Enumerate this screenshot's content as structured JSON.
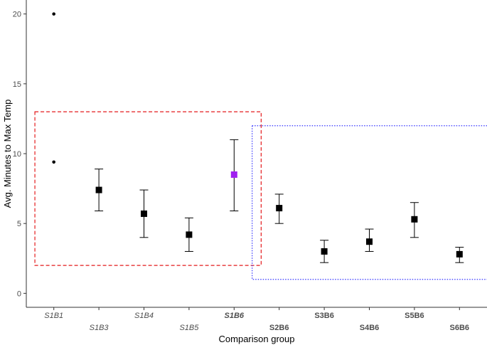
{
  "chart_data": {
    "type": "scatter",
    "xlabel": "Comparison group",
    "ylabel": "Avg. Minutes to Max Temp",
    "ylim": [
      -1,
      21
    ],
    "yticks": [
      0,
      5,
      10,
      15,
      20
    ],
    "grid": false,
    "categories": [
      {
        "label": "S1B1",
        "style": "italic",
        "row": 0
      },
      {
        "label": "S1B3",
        "style": "italic",
        "row": 1
      },
      {
        "label": "S1B4",
        "style": "italic",
        "row": 0
      },
      {
        "label": "S1B5",
        "style": "italic",
        "row": 1
      },
      {
        "label": "S1B6",
        "style": "bold-italic",
        "row": 0
      },
      {
        "label": "S2B6",
        "style": "bold",
        "row": 1
      },
      {
        "label": "S3B6",
        "style": "bold",
        "row": 0
      },
      {
        "label": "S4B6",
        "style": "bold",
        "row": 1
      },
      {
        "label": "S5B6",
        "style": "bold",
        "row": 0
      },
      {
        "label": "S6B6",
        "style": "bold",
        "row": 1
      }
    ],
    "points": [
      {
        "category": "S1B1",
        "values": [
          20.0,
          9.4
        ],
        "marker": "dot"
      },
      {
        "category": "S1B3",
        "mean": 7.4,
        "low": 5.9,
        "high": 8.9,
        "marker": "square",
        "color": "#000000"
      },
      {
        "category": "S1B4",
        "mean": 5.7,
        "low": 4.0,
        "high": 7.4,
        "marker": "square",
        "color": "#000000"
      },
      {
        "category": "S1B5",
        "mean": 4.2,
        "low": 3.0,
        "high": 5.4,
        "marker": "square",
        "color": "#000000"
      },
      {
        "category": "S1B6",
        "mean": 8.5,
        "low": 5.9,
        "high": 11.0,
        "marker": "square",
        "color": "#a020f0"
      },
      {
        "category": "S2B6",
        "mean": 6.1,
        "low": 5.0,
        "high": 7.1,
        "marker": "square",
        "color": "#000000"
      },
      {
        "category": "S3B6",
        "mean": 3.0,
        "low": 2.2,
        "high": 3.8,
        "marker": "square",
        "color": "#000000"
      },
      {
        "category": "S4B6",
        "mean": 3.7,
        "low": 3.0,
        "high": 4.6,
        "marker": "square",
        "color": "#000000"
      },
      {
        "category": "S5B6",
        "mean": 5.3,
        "low": 4.0,
        "high": 6.5,
        "marker": "square",
        "color": "#000000"
      },
      {
        "category": "S6B6",
        "mean": 2.8,
        "low": 2.2,
        "high": 3.3,
        "marker": "square",
        "color": "#000000"
      }
    ],
    "boxes": [
      {
        "name": "red-dashed-box",
        "color": "#e41a1c",
        "style": "dashed",
        "x_from": 0.08,
        "x_to": 5.1,
        "y_from": 2.0,
        "y_to": 13.0
      },
      {
        "name": "blue-dotted-box",
        "color": "#3333ff",
        "style": "dotted",
        "x_from": 4.9,
        "x_to": 10.2,
        "y_from": 1.0,
        "y_to": 12.0
      }
    ]
  }
}
